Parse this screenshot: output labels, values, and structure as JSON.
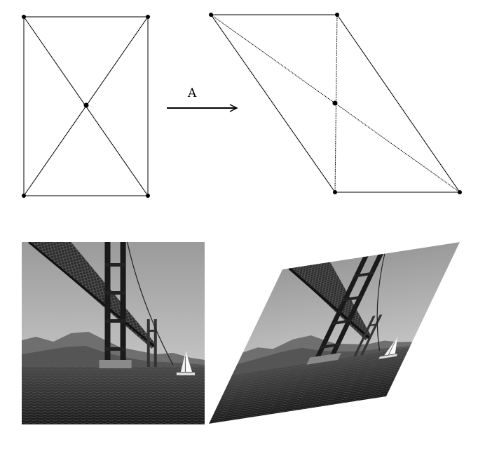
{
  "arrow": {
    "label": "A"
  },
  "colors": {
    "line": "#000000",
    "background": "#ffffff",
    "sky": "#c8c8c8",
    "water": "#2a2a2a",
    "mountains": "#6f6f6f",
    "bridge": "#1c1c1c"
  },
  "original_shape": {
    "shape": "rectangle",
    "vertices": [
      "top-left",
      "top-right",
      "bottom-right",
      "bottom-left"
    ],
    "diagonals": true,
    "center_point": true
  },
  "transformed_shape": {
    "shape": "parallelogram",
    "diagonals": true,
    "center_point": true,
    "vertical_segment": true
  },
  "photo": {
    "subject": "golden-gate-bridge-with-sailboat",
    "grayscale": true
  },
  "transformed_photo": {
    "transform": "shear",
    "grayscale": true
  }
}
